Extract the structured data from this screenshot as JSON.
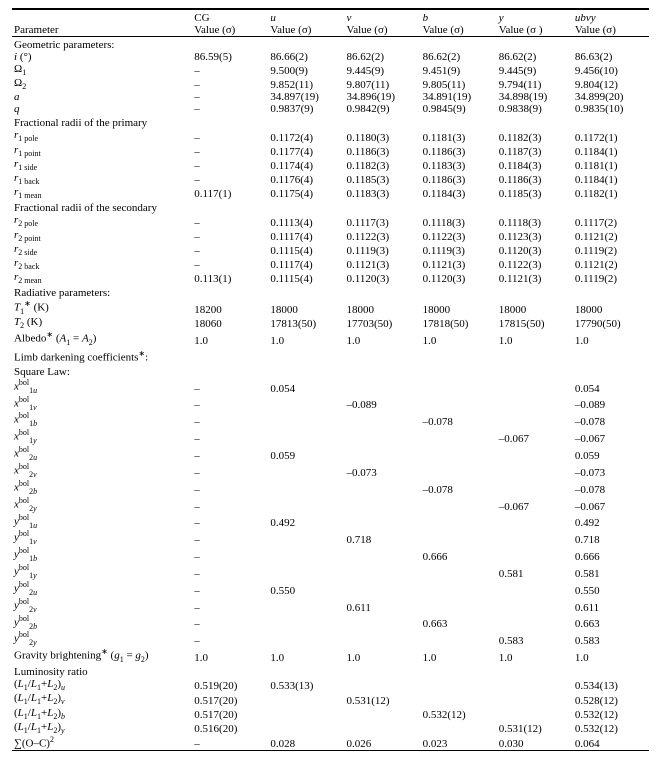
{
  "header": {
    "paramLabel": "Parameter",
    "cols": [
      {
        "top": "CG",
        "bot": "Value (σ)"
      },
      {
        "top": "u",
        "bot": "Value (σ)"
      },
      {
        "top": "v",
        "bot": "Value (σ)"
      },
      {
        "top": "b",
        "bot": "Value (σ)"
      },
      {
        "top": "y",
        "bot": "Value (σ )"
      },
      {
        "top": "ubvy",
        "bot": "Value (σ)"
      }
    ]
  },
  "sections": [
    {
      "title": "Geometric parameters:",
      "rows": [
        {
          "label_html": "<span class='ital'>i</span> (°)",
          "v": [
            "86.59(5)",
            "86.66(2)",
            "86.62(2)",
            "86.62(2)",
            "86.62(2)",
            "86.63(2)"
          ]
        },
        {
          "label_html": "Ω<span class='sub'>1</span>",
          "v": [
            "–",
            "9.500(9)",
            "9.445(9)",
            "9.451(9)",
            "9.445(9)",
            "9.456(10)"
          ]
        },
        {
          "label_html": "Ω<span class='sub'>2</span>",
          "v": [
            "–",
            "9.852(11)",
            "9.807(11)",
            "9.805(11)",
            "9.794(11)",
            "9.804(12)"
          ]
        },
        {
          "label_html": "<span class='ital'>a</span>",
          "v": [
            "–",
            "34.897(19)",
            "34.896(19)",
            "34.891(19)",
            "34.898(19)",
            "34.899(20)"
          ]
        },
        {
          "label_html": "<span class='ital'>q</span>",
          "v": [
            "–",
            "0.9837(9)",
            "0.9842(9)",
            "0.9845(9)",
            "0.9838(9)",
            "0.9835(10)"
          ]
        }
      ]
    },
    {
      "title": "Fractional radii of the primary",
      "rows": [
        {
          "label_html": "<span class='ital'>r</span><span class='sub'>1 pole</span>",
          "v": [
            "–",
            "0.1172(4)",
            "0.1180(3)",
            "0.1181(3)",
            "0.1182(3)",
            "0.1172(1)"
          ]
        },
        {
          "label_html": "<span class='ital'>r</span><span class='sub'>1 point</span>",
          "v": [
            "–",
            "0.1177(4)",
            "0.1186(3)",
            "0.1186(3)",
            "0.1187(3)",
            "0.1184(1)"
          ]
        },
        {
          "label_html": "<span class='ital'>r</span><span class='sub'>1 side</span>",
          "v": [
            "–",
            "0.1174(4)",
            "0.1182(3)",
            "0.1183(3)",
            "0.1184(3)",
            "0.1181(1)"
          ]
        },
        {
          "label_html": "<span class='ital'>r</span><span class='sub'>1 back</span>",
          "v": [
            "–",
            "0.1176(4)",
            "0.1185(3)",
            "0.1186(3)",
            "0.1186(3)",
            "0.1184(1)"
          ]
        },
        {
          "label_html": "<span class='ital'>r</span><span class='sub'>1 mean</span>",
          "v": [
            "0.117(1)",
            "0.1175(4)",
            "0.1183(3)",
            "0.1184(3)",
            "0.1185(3)",
            "0.1182(1)"
          ]
        }
      ]
    },
    {
      "title": "Fractional radii of the secondary",
      "rows": [
        {
          "label_html": "<span class='ital'>r</span><span class='sub'>2 pole</span>",
          "v": [
            "–",
            "0.1113(4)",
            "0.1117(3)",
            "0.1118(3)",
            "0.1118(3)",
            "0.1117(2)"
          ]
        },
        {
          "label_html": "<span class='ital'>r</span><span class='sub'>2 point</span>",
          "v": [
            "–",
            "0.1117(4)",
            "0.1122(3)",
            "0.1122(3)",
            "0.1123(3)",
            "0.1121(2)"
          ]
        },
        {
          "label_html": "<span class='ital'>r</span><span class='sub'>2 side</span>",
          "v": [
            "–",
            "0.1115(4)",
            "0.1119(3)",
            "0.1119(3)",
            "0.1120(3)",
            "0.1119(2)"
          ]
        },
        {
          "label_html": "<span class='ital'>r</span><span class='sub'>2 back</span>",
          "v": [
            "–",
            "0.1117(4)",
            "0.1121(3)",
            "0.1121(3)",
            "0.1122(3)",
            "0.1121(2)"
          ]
        },
        {
          "label_html": "<span class='ital'>r</span><span class='sub'>2 mean</span>",
          "v": [
            "0.113(1)",
            "0.1115(4)",
            "0.1120(3)",
            "0.1120(3)",
            "0.1121(3)",
            "0.1119(2)"
          ]
        }
      ]
    },
    {
      "title": "Radiative parameters:",
      "rows": [
        {
          "label_html": "<span class='ital'>T</span><span class='sub'>1</span><span class='sup'>∗</span> (K)",
          "v": [
            "18200",
            "18000",
            "18000",
            "18000",
            "18000",
            "18000"
          ]
        },
        {
          "label_html": "<span class='ital'>T</span><span class='sub'>2</span> (K)",
          "v": [
            "18060",
            "17813(50)",
            "17703(50)",
            "17818(50)",
            "17815(50)",
            "17790(50)"
          ]
        },
        {
          "label_html": "Albedo<span class='sup'>∗</span> (<span class='ital'>A</span><span class='sub'>1</span> = <span class='ital'>A</span><span class='sub'>2</span>)",
          "v": [
            "1.0",
            "1.0",
            "1.0",
            "1.0",
            "1.0",
            "1.0"
          ]
        }
      ]
    },
    {
      "title": "Limb darkening coefficients<span class='sup'>∗</span>:",
      "rows": []
    },
    {
      "title": "Square Law:",
      "rows": [
        {
          "label_html": "<span class='ital'>x</span><span class='sup'>bol</span><span class='sub'>1<span class='ital'>u</span></span>",
          "v": [
            "–",
            "0.054",
            "",
            "",
            "",
            "0.054"
          ]
        },
        {
          "label_html": "<span class='ital'>x</span><span class='sup'>bol</span><span class='sub'>1<span class='ital'>v</span></span>",
          "v": [
            "–",
            "",
            "–0.089",
            "",
            "",
            "–0.089"
          ]
        },
        {
          "label_html": "<span class='ital'>x</span><span class='sup'>bol</span><span class='sub'>1<span class='ital'>b</span></span>",
          "v": [
            "–",
            "",
            "",
            "–0.078",
            "",
            "–0.078"
          ]
        },
        {
          "label_html": "<span class='ital'>x</span><span class='sup'>bol</span><span class='sub'>1<span class='ital'>y</span></span>",
          "v": [
            "–",
            "",
            "",
            "",
            "–0.067",
            "–0.067"
          ]
        },
        {
          "label_html": "<span class='ital'>x</span><span class='sup'>bol</span><span class='sub'>2<span class='ital'>u</span></span>",
          "v": [
            "–",
            "0.059",
            "",
            "",
            "",
            "0.059"
          ]
        },
        {
          "label_html": "<span class='ital'>x</span><span class='sup'>bol</span><span class='sub'>2<span class='ital'>v</span></span>",
          "v": [
            "–",
            "",
            "–0.073",
            "",
            "",
            "–0.073"
          ]
        },
        {
          "label_html": "<span class='ital'>x</span><span class='sup'>bol</span><span class='sub'>2<span class='ital'>b</span></span>",
          "v": [
            "–",
            "",
            "",
            "–0.078",
            "",
            "–0.078"
          ]
        },
        {
          "label_html": "<span class='ital'>x</span><span class='sup'>bol</span><span class='sub'>2<span class='ital'>y</span></span>",
          "v": [
            "–",
            "",
            "",
            "",
            "–0.067",
            "–0.067"
          ]
        },
        {
          "label_html": "<span class='ital'>y</span><span class='sup'>bol</span><span class='sub'>1<span class='ital'>u</span></span>",
          "v": [
            "–",
            "0.492",
            "",
            "",
            "",
            "0.492"
          ]
        },
        {
          "label_html": "<span class='ital'>y</span><span class='sup'>bol</span><span class='sub'>1<span class='ital'>v</span></span>",
          "v": [
            "–",
            "",
            "0.718",
            "",
            "",
            "0.718"
          ]
        },
        {
          "label_html": "<span class='ital'>y</span><span class='sup'>bol</span><span class='sub'>1<span class='ital'>b</span></span>",
          "v": [
            "–",
            "",
            "",
            "0.666",
            "",
            "0.666"
          ]
        },
        {
          "label_html": "<span class='ital'>y</span><span class='sup'>bol</span><span class='sub'>1<span class='ital'>y</span></span>",
          "v": [
            "–",
            "",
            "",
            "",
            "0.581",
            "0.581"
          ]
        },
        {
          "label_html": "<span class='ital'>y</span><span class='sup'>bol</span><span class='sub'>2<span class='ital'>u</span></span>",
          "v": [
            "–",
            "0.550",
            "",
            "",
            "",
            "0.550"
          ]
        },
        {
          "label_html": "<span class='ital'>y</span><span class='sup'>bol</span><span class='sub'>2<span class='ital'>v</span></span>",
          "v": [
            "–",
            "",
            "0.611",
            "",
            "",
            "0.611"
          ]
        },
        {
          "label_html": "<span class='ital'>y</span><span class='sup'>bol</span><span class='sub'>2<span class='ital'>b</span></span>",
          "v": [
            "–",
            "",
            "",
            "0.663",
            "",
            "0.663"
          ]
        },
        {
          "label_html": "<span class='ital'>y</span><span class='sup'>bol</span><span class='sub'>2<span class='ital'>y</span></span>",
          "v": [
            "–",
            "",
            "",
            "",
            "0.583",
            "0.583"
          ]
        },
        {
          "label_html": "Gravity brightening<span class='sup'>∗</span> (<span class='ital'>g</span><span class='sub'>1</span> = <span class='ital'>g</span><span class='sub'>2</span>)",
          "v": [
            "1.0",
            "1.0",
            "1.0",
            "1.0",
            "1.0",
            "1.0"
          ]
        }
      ]
    },
    {
      "title": "Luminosity ratio",
      "rows": [
        {
          "label_html": "(<span class='ital'>L</span><span class='sub'>1</span>/<span class='ital'>L</span><span class='sub'>1</span>+<span class='ital'>L</span><span class='sub'>2</span>)<span class='sub ital'>u</span>",
          "v": [
            "0.519(20)",
            "0.533(13)",
            "",
            "",
            "",
            "0.534(13)"
          ]
        },
        {
          "label_html": "(<span class='ital'>L</span><span class='sub'>1</span>/<span class='ital'>L</span><span class='sub'>1</span>+<span class='ital'>L</span><span class='sub'>2</span>)<span class='sub ital'>v</span>",
          "v": [
            "0.517(20)",
            "",
            "0.531(12)",
            "",
            "",
            "0.528(12)"
          ]
        },
        {
          "label_html": "(<span class='ital'>L</span><span class='sub'>1</span>/<span class='ital'>L</span><span class='sub'>1</span>+<span class='ital'>L</span><span class='sub'>2</span>)<span class='sub ital'>b</span>",
          "v": [
            "0.517(20)",
            "",
            "",
            "0.532(12)",
            "",
            "0.532(12)"
          ]
        },
        {
          "label_html": "(<span class='ital'>L</span><span class='sub'>1</span>/<span class='ital'>L</span><span class='sub'>1</span>+<span class='ital'>L</span><span class='sub'>2</span>)<span class='sub ital'>y</span>",
          "v": [
            "0.516(20)",
            "",
            "",
            "",
            "0.531(12)",
            "0.532(12)"
          ]
        },
        {
          "label_html": "∑(O–C)<span class='sup'>2</span>",
          "v": [
            "–",
            "0.028",
            "0.026",
            "0.023",
            "0.030",
            "0.064"
          ]
        }
      ]
    }
  ]
}
